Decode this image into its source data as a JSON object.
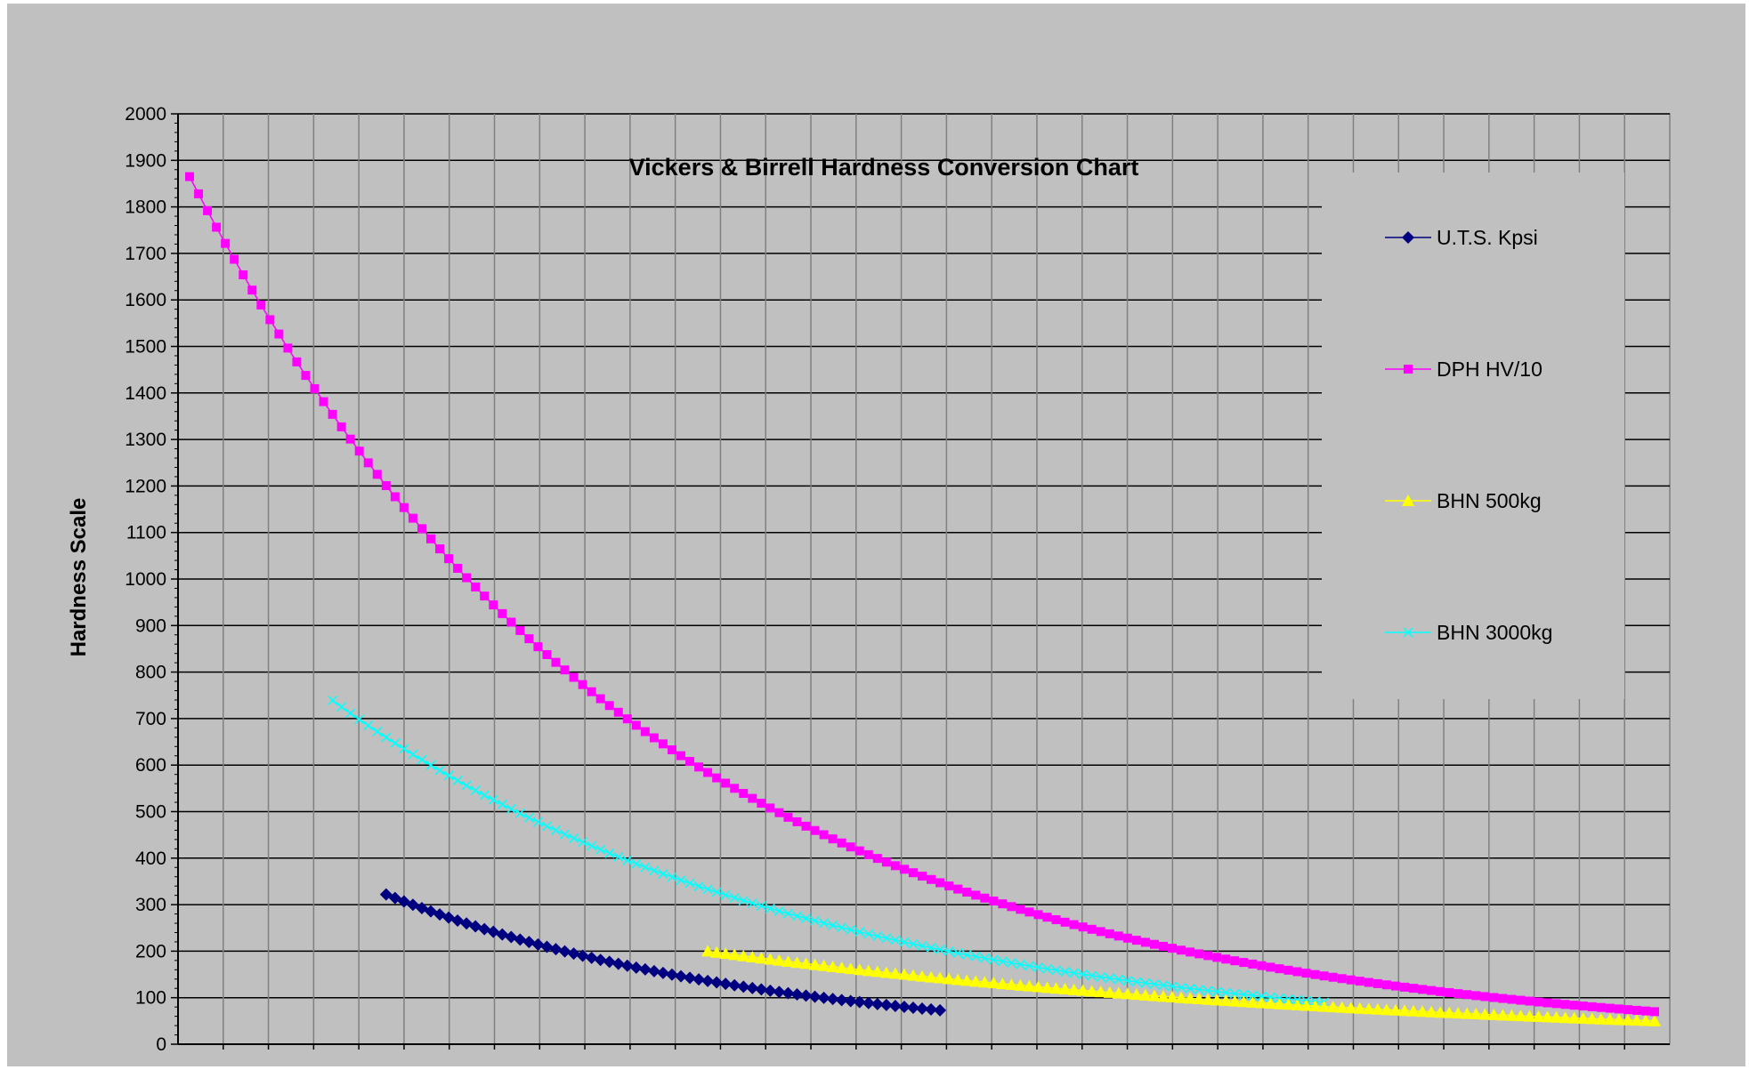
{
  "chart_data": {
    "type": "line",
    "title": "Vickers & Birrell Hardness Conversion Chart",
    "xlabel": "",
    "ylabel": "Hardness Scale",
    "ylim": [
      0,
      2000
    ],
    "yticks": [
      0,
      100,
      200,
      300,
      400,
      500,
      600,
      700,
      800,
      900,
      1000,
      1100,
      1200,
      1300,
      1400,
      1500,
      1600,
      1700,
      1800,
      1900,
      2000
    ],
    "x_index_range": [
      1,
      165
    ],
    "x_tick_labels_shown": false,
    "grid": true,
    "legend_position": "right",
    "series": [
      {
        "name": "U.T.S. Kpsi",
        "color": "#000080",
        "marker": "diamond",
        "x_start": 23,
        "x_end": 85,
        "start_value": 322,
        "end_value": 73
      },
      {
        "name": "DPH HV/10",
        "color": "#ff00ff",
        "marker": "square",
        "x_start": 1,
        "x_end": 165,
        "start_value": 1865,
        "end_value": 70
      },
      {
        "name": "BHN 500kg",
        "color": "#ffff00",
        "marker": "triangle",
        "x_start": 59,
        "x_end": 165,
        "start_value": 200,
        "end_value": 50
      },
      {
        "name": "BHN 3000kg",
        "color": "#00ffff",
        "marker": "x",
        "x_start": 17,
        "x_end": 128,
        "start_value": 739,
        "end_value": 90
      }
    ]
  }
}
